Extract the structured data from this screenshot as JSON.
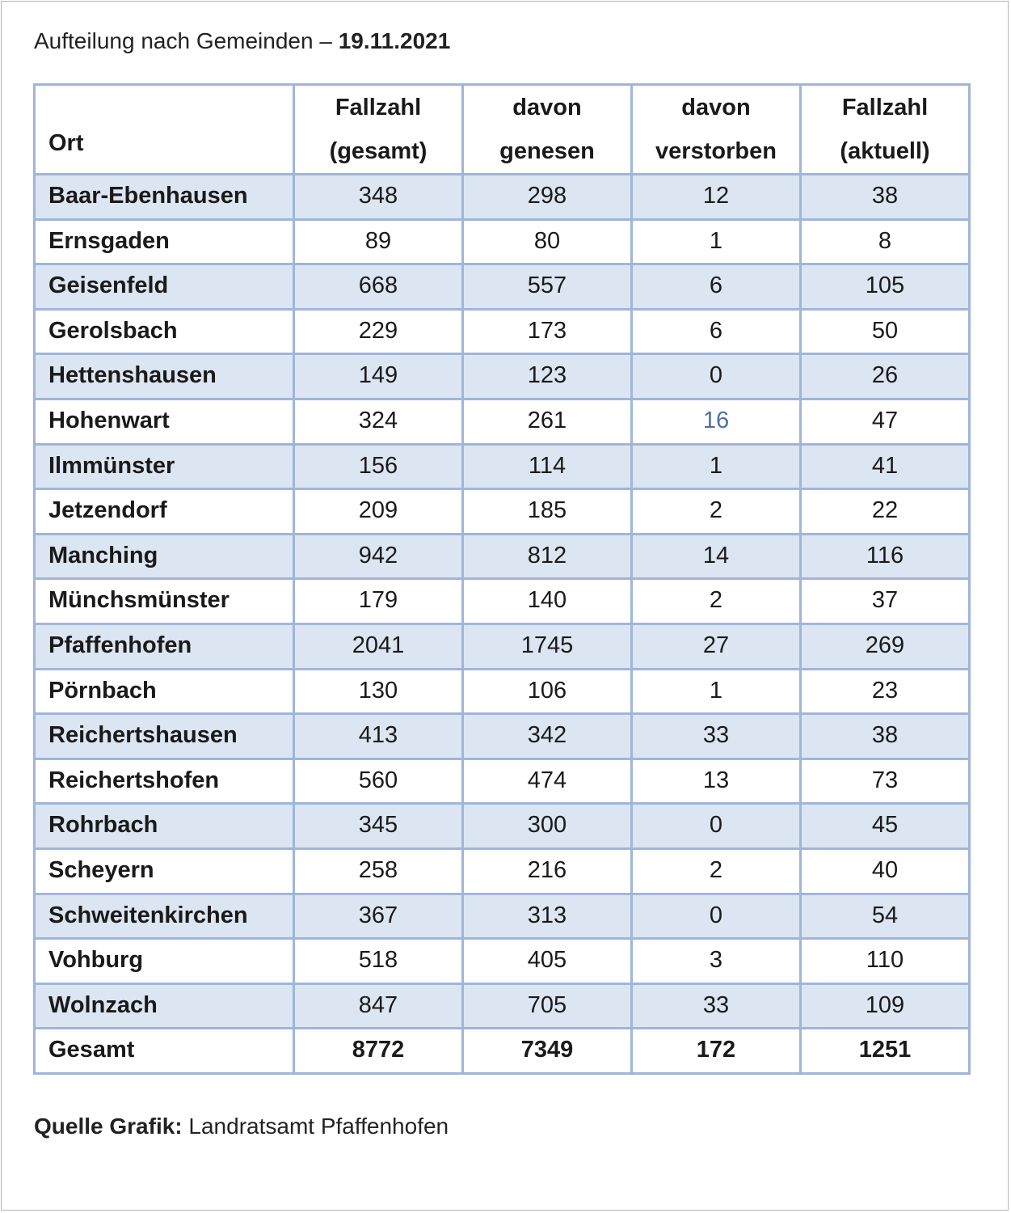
{
  "title": {
    "prefix": "Aufteilung nach Gemeinden – ",
    "date": "19.11.2021"
  },
  "columns": [
    {
      "line1": "",
      "line2": "Ort"
    },
    {
      "line1": "Fallzahl",
      "line2": "(gesamt)"
    },
    {
      "line1": "davon",
      "line2": "genesen"
    },
    {
      "line1": "davon",
      "line2": "verstorben"
    },
    {
      "line1": "Fallzahl",
      "line2": "(aktuell)"
    }
  ],
  "rows": [
    [
      "Baar-Ebenhausen",
      "348",
      "298",
      "12",
      "38"
    ],
    [
      "Ernsgaden",
      "89",
      "80",
      "1",
      "8"
    ],
    [
      "Geisenfeld",
      "668",
      "557",
      "6",
      "105"
    ],
    [
      "Gerolsbach",
      "229",
      "173",
      "6",
      "50"
    ],
    [
      "Hettenshausen",
      "149",
      "123",
      "0",
      "26"
    ],
    [
      "Hohenwart",
      "324",
      "261",
      "16",
      "47"
    ],
    [
      "Ilmmünster",
      "156",
      "114",
      "1",
      "41"
    ],
    [
      "Jetzendorf",
      "209",
      "185",
      "2",
      "22"
    ],
    [
      "Manching",
      "942",
      "812",
      "14",
      "116"
    ],
    [
      "Münchsmünster",
      "179",
      "140",
      "2",
      "37"
    ],
    [
      "Pfaffenhofen",
      "2041",
      "1745",
      "27",
      "269"
    ],
    [
      "Pörnbach",
      "130",
      "106",
      "1",
      "23"
    ],
    [
      "Reichertshausen",
      "413",
      "342",
      "33",
      "38"
    ],
    [
      "Reichertshofen",
      "560",
      "474",
      "13",
      "73"
    ],
    [
      "Rohrbach",
      "345",
      "300",
      "0",
      "45"
    ],
    [
      "Scheyern",
      "258",
      "216",
      "2",
      "40"
    ],
    [
      "Schweitenkirchen",
      "367",
      "313",
      "0",
      "54"
    ],
    [
      "Vohburg",
      "518",
      "405",
      "3",
      "110"
    ],
    [
      "Wolnzach",
      "847",
      "705",
      "33",
      "109"
    ]
  ],
  "total": [
    "Gesamt",
    "8772",
    "7349",
    "172",
    "1251"
  ],
  "source": {
    "label": "Quelle Grafik:",
    "text": " Landratsamt Pfaffenhofen"
  },
  "colors": {
    "border": "#9fb6d9",
    "stripe": "#dce5f2",
    "highlight": "#4a6fa5"
  }
}
